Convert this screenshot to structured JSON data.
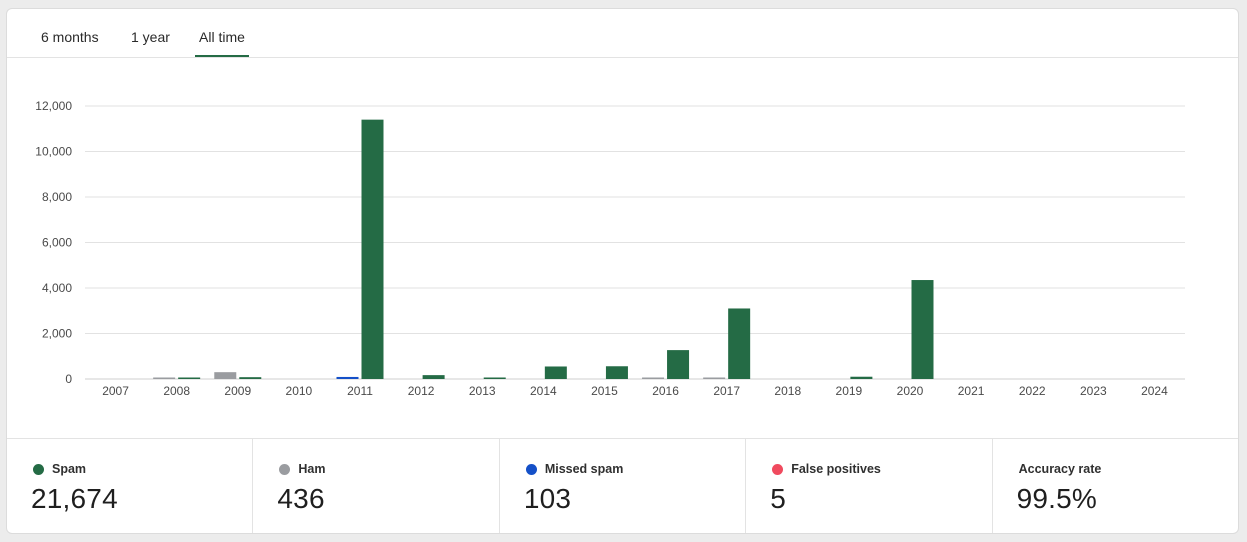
{
  "tabs": [
    {
      "label": "6 months",
      "active": false
    },
    {
      "label": "1 year",
      "active": false
    },
    {
      "label": "All time",
      "active": true
    }
  ],
  "colors": {
    "spam": "#246b45",
    "ham": "#9a9ca0",
    "missed_spam": "#1450c8",
    "false_positives": "#f04a5e",
    "grid": "#e2e2e2",
    "tab_underline": "#246b45"
  },
  "chart_data": {
    "type": "bar",
    "categories": [
      "2007",
      "2008",
      "2009",
      "2010",
      "2011",
      "2012",
      "2013",
      "2014",
      "2015",
      "2016",
      "2017",
      "2018",
      "2019",
      "2020",
      "2021",
      "2022",
      "2023",
      "2024"
    ],
    "series": [
      {
        "name": "Ham",
        "color": "#9a9ca0",
        "values": [
          0,
          30,
          300,
          0,
          0,
          0,
          0,
          0,
          0,
          60,
          30,
          0,
          0,
          0,
          0,
          0,
          0,
          0
        ]
      },
      {
        "name": "Missed spam",
        "color": "#1450c8",
        "values": [
          0,
          0,
          0,
          0,
          90,
          0,
          0,
          0,
          0,
          0,
          0,
          0,
          0,
          0,
          0,
          0,
          0,
          0
        ]
      },
      {
        "name": "Spam",
        "color": "#246b45",
        "values": [
          0,
          60,
          80,
          0,
          11400,
          170,
          60,
          550,
          560,
          1270,
          3100,
          0,
          100,
          4350,
          0,
          0,
          0,
          0
        ]
      }
    ],
    "yticks": [
      0,
      2000,
      4000,
      6000,
      8000,
      10000,
      12000
    ],
    "ytick_labels": [
      "0",
      "2,000",
      "4,000",
      "6,000",
      "8,000",
      "10,000",
      "12,000"
    ],
    "ylim": [
      0,
      12000
    ],
    "grid": true,
    "legend": "none"
  },
  "stats": [
    {
      "key": "spam",
      "label": "Spam",
      "value": "21,674",
      "color": "#246b45",
      "has_dot": true
    },
    {
      "key": "ham",
      "label": "Ham",
      "value": "436",
      "color": "#9a9ca0",
      "has_dot": true
    },
    {
      "key": "missed",
      "label": "Missed spam",
      "value": "103",
      "color": "#1450c8",
      "has_dot": true
    },
    {
      "key": "fp",
      "label": "False positives",
      "value": "5",
      "color": "#f04a5e",
      "has_dot": true
    },
    {
      "key": "accuracy",
      "label": "Accuracy rate",
      "value": "99.5%",
      "has_dot": false
    }
  ]
}
